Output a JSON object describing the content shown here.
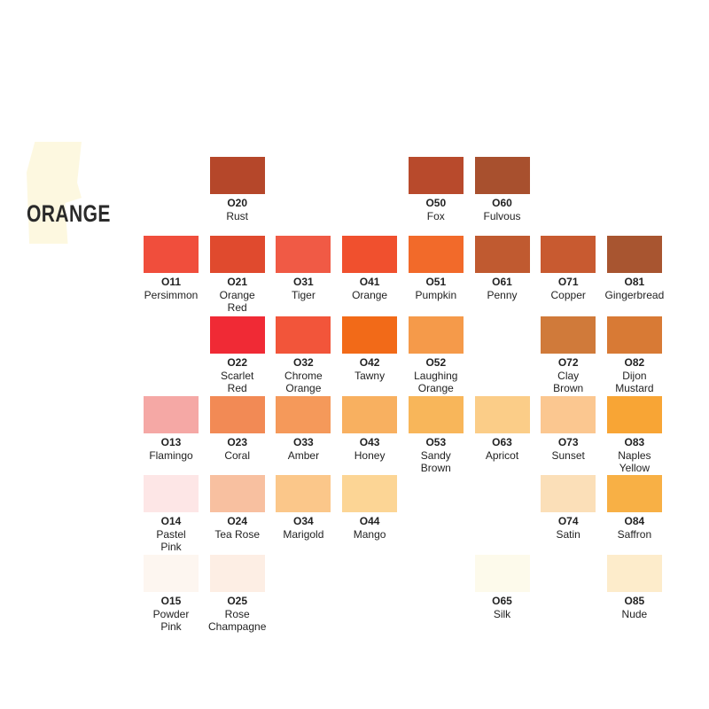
{
  "header": {
    "title": "ORANGE"
  },
  "rows": [
    [
      null,
      {
        "code": "O20",
        "name": [
          "Rust"
        ],
        "color": "#b5472a"
      },
      null,
      null,
      {
        "code": "O50",
        "name": [
          "Fox"
        ],
        "color": "#b84a2c"
      },
      {
        "code": "O60",
        "name": [
          "Fulvous"
        ],
        "color": "#a8502e"
      },
      null,
      null
    ],
    [
      {
        "code": "O11",
        "name": [
          "Persimmon"
        ],
        "color": "#f04e3c"
      },
      {
        "code": "O21",
        "name": [
          "Orange",
          "Red"
        ],
        "color": "#e04a2e"
      },
      {
        "code": "O31",
        "name": [
          "Tiger"
        ],
        "color": "#f05a45"
      },
      {
        "code": "O41",
        "name": [
          "Orange"
        ],
        "color": "#f0502e"
      },
      {
        "code": "O51",
        "name": [
          "Pumpkin"
        ],
        "color": "#f26a2a"
      },
      {
        "code": "O61",
        "name": [
          "Penny"
        ],
        "color": "#c05a30"
      },
      {
        "code": "O71",
        "name": [
          "Copper"
        ],
        "color": "#c85a30"
      },
      {
        "code": "O81",
        "name": [
          "Gingerbread"
        ],
        "color": "#a85530"
      }
    ],
    [
      null,
      {
        "code": "O22",
        "name": [
          "Scarlet",
          "Red"
        ],
        "color": "#f02a35"
      },
      {
        "code": "O32",
        "name": [
          "Chrome",
          "Orange"
        ],
        "color": "#f2553a"
      },
      {
        "code": "O42",
        "name": [
          "Tawny"
        ],
        "color": "#f26a18"
      },
      {
        "code": "O52",
        "name": [
          "Laughing",
          "Orange"
        ],
        "color": "#f59a4a"
      },
      null,
      {
        "code": "O72",
        "name": [
          "Clay",
          "Brown"
        ],
        "color": "#d07a3a"
      },
      {
        "code": "O82",
        "name": [
          "Dijon",
          "Mustard"
        ],
        "color": "#d87a35"
      }
    ],
    [
      {
        "code": "O13",
        "name": [
          "Flamingo"
        ],
        "color": "#f5a8a5"
      },
      {
        "code": "O23",
        "name": [
          "Coral"
        ],
        "color": "#f28a55"
      },
      {
        "code": "O33",
        "name": [
          "Amber"
        ],
        "color": "#f5995a"
      },
      {
        "code": "O43",
        "name": [
          "Honey"
        ],
        "color": "#f8b060"
      },
      {
        "code": "O53",
        "name": [
          "Sandy",
          "Brown"
        ],
        "color": "#f8b65a"
      },
      {
        "code": "O63",
        "name": [
          "Apricot"
        ],
        "color": "#fbcd88"
      },
      {
        "code": "O73",
        "name": [
          "Sunset"
        ],
        "color": "#fbc790"
      },
      {
        "code": "O83",
        "name": [
          "Naples",
          "Yellow"
        ],
        "color": "#f8a535"
      }
    ],
    [
      {
        "code": "O14",
        "name": [
          "Pastel",
          "Pink"
        ],
        "color": "#fde6e6"
      },
      {
        "code": "O24",
        "name": [
          "Tea Rose"
        ],
        "color": "#f8c0a0"
      },
      {
        "code": "O34",
        "name": [
          "Marigold"
        ],
        "color": "#fbc78a"
      },
      {
        "code": "O44",
        "name": [
          "Mango"
        ],
        "color": "#fcd595"
      },
      null,
      null,
      {
        "code": "O74",
        "name": [
          "Satin"
        ],
        "color": "#fbdfb8"
      },
      {
        "code": "O84",
        "name": [
          "Saffron"
        ],
        "color": "#f8b045"
      }
    ],
    [
      {
        "code": "O15",
        "name": [
          "Powder",
          "Pink"
        ],
        "color": "#fdf6f0"
      },
      {
        "code": "O25",
        "name": [
          "Rose",
          "Champagne"
        ],
        "color": "#fdeee4"
      },
      null,
      null,
      null,
      {
        "code": "O65",
        "name": [
          "Silk"
        ],
        "color": "#fdfaeb"
      },
      null,
      {
        "code": "O85",
        "name": [
          "Nude"
        ],
        "color": "#fdeccb"
      }
    ]
  ]
}
